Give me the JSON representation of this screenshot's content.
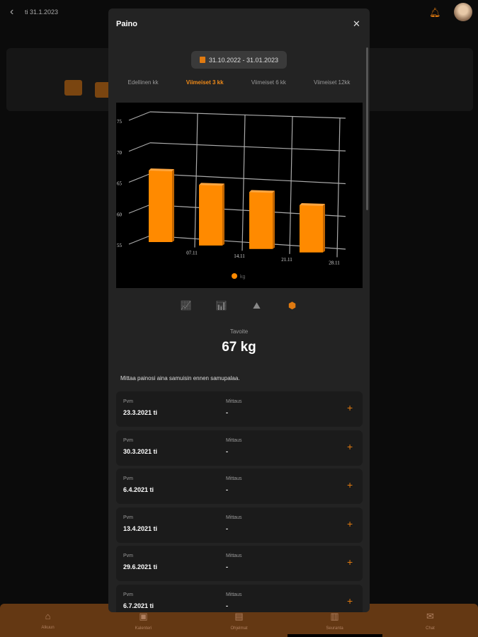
{
  "header": {
    "date": "ti 31.1.2023"
  },
  "nav": [
    {
      "label": "Alkuun",
      "icon": "⌂"
    },
    {
      "label": "Kalenteri",
      "icon": "▣"
    },
    {
      "label": "Ohjelmat",
      "icon": "▤"
    },
    {
      "label": "Seuranta",
      "icon": "▥"
    },
    {
      "label": "Chat",
      "icon": "✉"
    }
  ],
  "modal": {
    "title": "Paino",
    "range": "31.10.2022 - 31.01.2023",
    "tabs": [
      {
        "label": "Edellinen kk",
        "active": false
      },
      {
        "label": "Viimeiset 3 kk",
        "active": true
      },
      {
        "label": "Viimeiset 6 kk",
        "active": false
      },
      {
        "label": "Viimeiset 12kk",
        "active": false
      }
    ],
    "chart_types": [
      "line-chart-icon",
      "bar-chart-icon",
      "area-chart-icon",
      "3d-cube-icon"
    ],
    "goal_label": "Tavoite",
    "goal_value": "67 kg",
    "hint": "Mittaa painosi aina samuisin ennen samupalaa.",
    "rows": [
      {
        "label1": "Pvm",
        "date": "23.3.2021 ti",
        "label2": "Mittaus",
        "value": "-"
      },
      {
        "label1": "Pvm",
        "date": "30.3.2021 ti",
        "label2": "Mittaus",
        "value": "-"
      },
      {
        "label1": "Pvm",
        "date": "6.4.2021 ti",
        "label2": "Mittaus",
        "value": "-"
      },
      {
        "label1": "Pvm",
        "date": "13.4.2021 ti",
        "label2": "Mittaus",
        "value": "-"
      },
      {
        "label1": "Pvm",
        "date": "29.6.2021 ti",
        "label2": "Mittaus",
        "value": "-"
      },
      {
        "label1": "Pvm",
        "date": "6.7.2021 ti",
        "label2": "Mittaus",
        "value": "-"
      }
    ]
  },
  "colors": {
    "accent": "#f08a18",
    "modal": "#232323",
    "nav": "#643813"
  },
  "chart_data": {
    "type": "bar",
    "style": "3d",
    "categories": [
      "07.11",
      "14.11",
      "21.11",
      "28.11"
    ],
    "series": [
      {
        "name": "kg",
        "values": [
          65.6,
          63.7,
          63.0,
          61.4
        ]
      }
    ],
    "yticks": [
      55,
      60,
      65,
      70,
      75
    ],
    "ylim": [
      55,
      75
    ],
    "grid": true,
    "legend": "bottom"
  }
}
